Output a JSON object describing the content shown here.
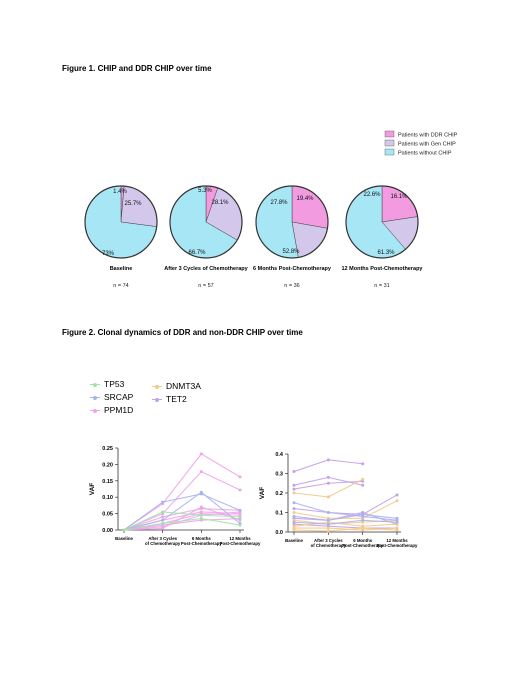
{
  "figure1": {
    "title": "Figure 1.  CHIP and DDR CHIP over time",
    "legend": [
      {
        "label": "Patients with DDR CHIP",
        "color": "#f29be0"
      },
      {
        "label": "Patients with Gen CHIP",
        "color": "#d3c8ec"
      },
      {
        "label": "Patients without CHIP",
        "color": "#a6e6f5"
      }
    ]
  },
  "figure2": {
    "title": "Figure 2. Clonal dynamics of DDR and non-DDR CHIP over time",
    "legend": [
      {
        "label": "TP53",
        "color": "#9fe4a6"
      },
      {
        "label": "SRCAP",
        "color": "#a7b3ee"
      },
      {
        "label": "PPM1D",
        "color": "#f0a4ea"
      },
      {
        "label": "DNMT3A",
        "color": "#f4c98a"
      },
      {
        "label": "TET2",
        "color": "#c3a1e8"
      }
    ]
  },
  "chart_data": [
    {
      "type": "pie",
      "series_names": [
        "Patients with DDR CHIP",
        "Patients with Gen CHIP",
        "Patients without CHIP"
      ],
      "colors": [
        "#f29be0",
        "#d3c8ec",
        "#a6e6f5"
      ],
      "pies": [
        {
          "label": "Baseline",
          "n": "n = 74",
          "values": [
            1.4,
            25.7,
            73.0
          ],
          "value_labels": [
            "1.4%",
            "25.7%",
            "73%"
          ]
        },
        {
          "label": "After 3 Cycles of Chemotherapy",
          "n": "n = 57",
          "values": [
            5.3,
            28.1,
            66.7
          ],
          "value_labels": [
            "5.3%",
            "28.1%",
            "66.7%"
          ]
        },
        {
          "label": "6 Months Post-Chemotherapy",
          "n": "n = 36",
          "values": [
            27.8,
            19.4,
            52.8
          ],
          "value_labels": [
            "27.8%",
            "19.4%",
            "52.8%"
          ]
        },
        {
          "label": "12 Months Post-Chemotherapy",
          "n": "n = 31",
          "values": [
            22.6,
            16.1,
            61.3
          ],
          "value_labels": [
            "22.6%",
            "16.1%",
            "61.3%"
          ]
        }
      ]
    },
    {
      "type": "line",
      "ylabel": "VAF",
      "ylim": [
        0,
        0.25
      ],
      "yticks": [
        "0.00",
        "0.05",
        "0.10",
        "0.15",
        "0.20",
        "0.25"
      ],
      "categories": [
        "Baseline",
        "After 3 Cycles of Chemotherapy",
        "6 Months Post-Chemotherapy",
        "12 Months Post-Chemotherapy"
      ],
      "series": [
        {
          "gene": "PPM1D",
          "color": "#f0a4ea",
          "values": [
            0.0,
            0.08,
            0.232,
            0.162
          ]
        },
        {
          "gene": "PPM1D",
          "color": "#f0a4ea",
          "values": [
            0.0,
            0.05,
            0.178,
            0.122
          ]
        },
        {
          "gene": "PPM1D",
          "color": "#f0a4ea",
          "values": [
            0.0,
            0.04,
            0.065,
            0.06
          ]
        },
        {
          "gene": "PPM1D",
          "color": "#f0a4ea",
          "values": [
            0.0,
            0.03,
            0.055,
            0.05
          ]
        },
        {
          "gene": "PPM1D",
          "color": "#f0a4ea",
          "values": [
            0.0,
            0.02,
            0.05,
            0.045
          ]
        },
        {
          "gene": "PPM1D",
          "color": "#f0a4ea",
          "values": [
            0.0,
            0.01,
            0.045,
            0.055
          ]
        },
        {
          "gene": "PPM1D",
          "color": "#f0a4ea",
          "values": [
            0.0,
            0.015,
            0.03,
            0.035
          ]
        },
        {
          "gene": "PPM1D",
          "color": "#f0a4ea",
          "values": [
            0.0,
            0.005,
            0.07,
            0.03
          ]
        },
        {
          "gene": "SRCAP",
          "color": "#a7b3ee",
          "values": [
            0.0,
            0.085,
            0.11,
            0.06
          ]
        },
        {
          "gene": "SRCAP",
          "color": "#a7b3ee",
          "values": [
            0.0,
            0.03,
            0.115,
            0.02
          ]
        },
        {
          "gene": "TP53",
          "color": "#9fe4a6",
          "values": [
            0.0,
            0.055,
            0.045,
            0.04
          ]
        },
        {
          "gene": "TP53",
          "color": "#9fe4a6",
          "values": [
            0.0,
            0.02,
            0.035,
            0.015
          ]
        }
      ]
    },
    {
      "type": "line",
      "ylabel": "VAF",
      "ylim": [
        0,
        0.4
      ],
      "yticks": [
        "0.0",
        "0.1",
        "0.2",
        "0.3",
        "0.4"
      ],
      "categories": [
        "Baseline",
        "After 3 Cycles of Chemotherapy",
        "6 Months Post-Chemotherapy",
        "12 Months Post-Chemotherapy"
      ],
      "series": [
        {
          "gene": "TET2",
          "color": "#c3a1e8",
          "values": [
            0.31,
            0.37,
            0.35,
            null
          ]
        },
        {
          "gene": "TET2",
          "color": "#c3a1e8",
          "values": [
            0.24,
            0.28,
            0.24,
            null
          ]
        },
        {
          "gene": "TET2",
          "color": "#c3a1e8",
          "values": [
            0.22,
            0.25,
            0.26,
            null
          ]
        },
        {
          "gene": "TET2",
          "color": "#c3a1e8",
          "values": [
            0.12,
            0.1,
            0.09,
            0.19
          ]
        },
        {
          "gene": "TET2",
          "color": "#c3a1e8",
          "values": [
            0.07,
            0.06,
            0.1,
            0.04
          ]
        },
        {
          "gene": "TET2",
          "color": "#c3a1e8",
          "values": [
            0.04,
            0.03,
            0.02,
            0.02
          ]
        },
        {
          "gene": "DNMT3A",
          "color": "#f4c98a",
          "values": [
            0.2,
            0.18,
            0.27,
            null
          ]
        },
        {
          "gene": "DNMT3A",
          "color": "#f4c98a",
          "values": [
            0.1,
            0.07,
            0.07,
            0.16
          ]
        },
        {
          "gene": "DNMT3A",
          "color": "#f4c98a",
          "values": [
            0.06,
            0.04,
            0.05,
            0.06
          ]
        },
        {
          "gene": "DNMT3A",
          "color": "#f4c98a",
          "values": [
            0.03,
            0.05,
            0.03,
            0.04
          ]
        },
        {
          "gene": "DNMT3A",
          "color": "#f4c98a",
          "values": [
            0.02,
            0.02,
            0.01,
            0.02
          ]
        },
        {
          "gene": "DNMT3A",
          "color": "#f4c98a",
          "values": [
            0.01,
            0.005,
            0.02,
            0.01
          ]
        },
        {
          "gene": "SRCAP",
          "color": "#a7b3ee",
          "values": [
            0.08,
            0.06,
            0.09,
            0.07
          ]
        },
        {
          "gene": "SRCAP",
          "color": "#a7b3ee",
          "values": [
            0.05,
            0.04,
            0.06,
            0.05
          ]
        },
        {
          "gene": "SRCAP",
          "color": "#a7b3ee",
          "values": [
            0.15,
            0.1,
            0.08,
            0.06
          ]
        }
      ]
    }
  ]
}
